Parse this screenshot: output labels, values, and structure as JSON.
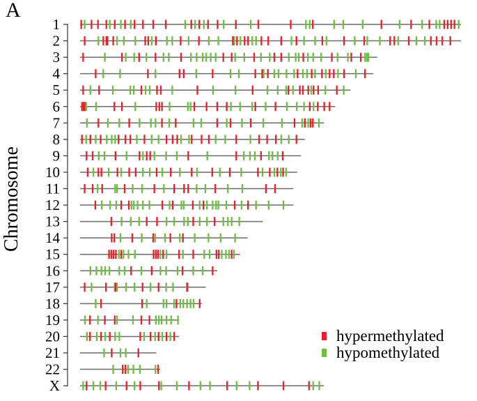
{
  "panel_label": "A",
  "chart_data": {
    "type": "chromosome-ideogram",
    "ylabel": "Chromosome",
    "legend_placement": "bottom-right",
    "legend": [
      {
        "name": "hypermethylated",
        "color": "#e8202a"
      },
      {
        "name": "hypomethylated",
        "color": "#6cbf3f"
      }
    ],
    "chromosomes": [
      {
        "name": "1",
        "length": 1.0,
        "hyper": [
          0.003,
          0.03,
          0.047,
          0.069,
          0.091,
          0.118,
          0.143,
          0.165,
          0.192,
          0.225,
          0.292,
          0.313,
          0.336,
          0.361,
          0.409,
          0.468,
          0.553,
          0.611,
          0.791,
          0.869,
          0.917,
          0.956,
          0.965,
          0.974,
          0.983
        ],
        "hypo": [
          0.012,
          0.078,
          0.107,
          0.133,
          0.276,
          0.302,
          0.325,
          0.377,
          0.448,
          0.593,
          0.603,
          0.667,
          0.691,
          0.742,
          0.839,
          0.898,
          0.935,
          0.944,
          0.994
        ]
      },
      {
        "name": "2",
        "length": 1.0,
        "hyper": [
          0.012,
          0.061,
          0.069,
          0.072,
          0.087,
          0.171,
          0.179,
          0.199,
          0.264,
          0.312,
          0.401,
          0.412,
          0.432,
          0.441,
          0.476,
          0.494,
          0.528,
          0.568,
          0.636,
          0.693,
          0.746,
          0.814,
          0.825,
          0.863,
          0.921,
          0.936,
          0.951,
          0.972
        ],
        "hypo": [
          0.048,
          0.097,
          0.115,
          0.145,
          0.188,
          0.228,
          0.242,
          0.285,
          0.338,
          0.363,
          0.405,
          0.421,
          0.452,
          0.462,
          0.555,
          0.588,
          0.617,
          0.647,
          0.721,
          0.754,
          0.787,
          0.835,
          0.883,
          0.905
        ]
      },
      {
        "name": "3",
        "length": 0.78,
        "hyper": [
          0.008,
          0.11,
          0.155,
          0.198,
          0.265,
          0.376,
          0.398,
          0.457,
          0.51,
          0.528,
          0.586,
          0.661,
          0.712,
          0.737
        ],
        "hypo": [
          0.065,
          0.12,
          0.142,
          0.174,
          0.219,
          0.233,
          0.291,
          0.306,
          0.322,
          0.331,
          0.343,
          0.356,
          0.407,
          0.431,
          0.475,
          0.498,
          0.548,
          0.566,
          0.574,
          0.598,
          0.612,
          0.633,
          0.676,
          0.703,
          0.748,
          0.753,
          0.757
        ]
      },
      {
        "name": "4",
        "length": 0.77,
        "hyper": [
          0.041,
          0.178,
          0.261,
          0.272,
          0.348,
          0.46,
          0.478,
          0.493,
          0.571,
          0.608,
          0.635,
          0.655,
          0.666,
          0.693,
          0.748
        ],
        "hypo": [
          0.061,
          0.105,
          0.198,
          0.305,
          0.395,
          0.417,
          0.482,
          0.51,
          0.521,
          0.542,
          0.562,
          0.585,
          0.596,
          0.617,
          0.645,
          0.677,
          0.724
        ]
      },
      {
        "name": "5",
        "length": 0.71,
        "hyper": [
          0.008,
          0.05,
          0.161,
          0.202,
          0.212,
          0.308,
          0.453,
          0.547,
          0.577,
          0.585,
          0.599,
          0.613,
          0.625,
          0.674
        ],
        "hypo": [
          0.027,
          0.086,
          0.132,
          0.141,
          0.172,
          0.183,
          0.242,
          0.308,
          0.349,
          0.408,
          0.492,
          0.519,
          0.541,
          0.559,
          0.607,
          0.644,
          0.692
        ]
      },
      {
        "name": "6",
        "length": 0.67,
        "hyper": [
          0.005,
          0.009,
          0.012,
          0.09,
          0.11,
          0.2,
          0.208,
          0.215,
          0.3,
          0.332,
          0.36,
          0.385,
          0.46,
          0.513,
          0.603,
          0.624,
          0.641,
          0.655
        ],
        "hypo": [
          0.016,
          0.042,
          0.145,
          0.235,
          0.283,
          0.29,
          0.396,
          0.42,
          0.452,
          0.487,
          0.543,
          0.569,
          0.588,
          0.613
        ]
      },
      {
        "name": "7",
        "length": 0.64,
        "hyper": [
          0.048,
          0.129,
          0.215,
          0.251,
          0.36,
          0.395,
          0.448,
          0.563,
          0.59,
          0.605,
          0.611
        ],
        "hypo": [
          0.018,
          0.073,
          0.103,
          0.156,
          0.186,
          0.198,
          0.234,
          0.298,
          0.318,
          0.385,
          0.425,
          0.481,
          0.53,
          0.583,
          0.599,
          0.627
        ]
      },
      {
        "name": "8",
        "length": 0.59,
        "hyper": [
          0.005,
          0.027,
          0.054,
          0.101,
          0.119,
          0.132,
          0.169,
          0.227,
          0.243,
          0.255,
          0.293,
          0.319,
          0.338,
          0.41,
          0.47,
          0.491,
          0.514,
          0.568
        ],
        "hypo": [
          0.016,
          0.041,
          0.07,
          0.083,
          0.092,
          0.149,
          0.188,
          0.206,
          0.265,
          0.286,
          0.356,
          0.381,
          0.447,
          0.528,
          0.548
        ]
      },
      {
        "name": "9",
        "length": 0.58,
        "hyper": [
          0.017,
          0.033,
          0.093,
          0.156,
          0.175,
          0.184,
          0.284,
          0.41,
          0.475,
          0.532
        ],
        "hypo": [
          0.049,
          0.064,
          0.122,
          0.165,
          0.195,
          0.226,
          0.254,
          0.334,
          0.43,
          0.446,
          0.459,
          0.496,
          0.505,
          0.519
        ]
      },
      {
        "name": "10",
        "length": 0.57,
        "hyper": [
          0.02,
          0.048,
          0.056,
          0.098,
          0.129,
          0.146,
          0.201,
          0.238,
          0.293,
          0.347,
          0.393,
          0.467,
          0.498,
          0.518,
          0.533
        ],
        "hypo": [
          0.035,
          0.075,
          0.108,
          0.165,
          0.183,
          0.216,
          0.262,
          0.307,
          0.367,
          0.423,
          0.479,
          0.51,
          0.527,
          0.541
        ]
      },
      {
        "name": "11",
        "length": 0.56,
        "hyper": [
          0.012,
          0.033,
          0.058,
          0.117,
          0.195,
          0.247,
          0.273,
          0.284,
          0.355,
          0.488,
          0.512
        ],
        "hypo": [
          0.046,
          0.092,
          0.097,
          0.138,
          0.163,
          0.22,
          0.306,
          0.329,
          0.388,
          0.426
        ]
      },
      {
        "name": "12",
        "length": 0.56,
        "hyper": [
          0.04,
          0.108,
          0.128,
          0.216,
          0.243,
          0.296,
          0.324,
          0.406,
          0.441
        ],
        "hypo": [
          0.057,
          0.079,
          0.095,
          0.135,
          0.141,
          0.151,
          0.165,
          0.182,
          0.235,
          0.266,
          0.272,
          0.314,
          0.333,
          0.348,
          0.357,
          0.363,
          0.384,
          0.424,
          0.462,
          0.495,
          0.534
        ]
      },
      {
        "name": "13",
        "length": 0.48,
        "hyper": [
          0.082,
          0.175,
          0.202,
          0.297,
          0.353
        ],
        "hypo": [
          0.109,
          0.133,
          0.155,
          0.227,
          0.247,
          0.273,
          0.283,
          0.314,
          0.333,
          0.376,
          0.388,
          0.398,
          0.418
        ]
      },
      {
        "name": "14",
        "length": 0.44,
        "hyper": [
          0.083,
          0.09,
          0.137,
          0.192,
          0.237,
          0.27
        ],
        "hypo": [
          0.106,
          0.162,
          0.197,
          0.223,
          0.262,
          0.301,
          0.337,
          0.369,
          0.407
        ]
      },
      {
        "name": "15",
        "length": 0.42,
        "hyper": [
          0.076,
          0.082,
          0.088,
          0.094,
          0.108,
          0.193,
          0.199,
          0.205,
          0.218,
          0.26,
          0.297,
          0.358,
          0.364,
          0.398
        ],
        "hypo": [
          0.102,
          0.114,
          0.127,
          0.144,
          0.211,
          0.227,
          0.27,
          0.326,
          0.34,
          0.372,
          0.383,
          0.391,
          0.404
        ]
      },
      {
        "name": "16",
        "length": 0.36,
        "hyper": [
          0.134,
          0.188,
          0.269,
          0.348
        ],
        "hypo": [
          0.027,
          0.043,
          0.056,
          0.066,
          0.077,
          0.103,
          0.117,
          0.161,
          0.211,
          0.226,
          0.256,
          0.297,
          0.322
        ]
      },
      {
        "name": "17",
        "length": 0.33,
        "hyper": [
          0.012,
          0.068,
          0.093,
          0.164,
          0.206,
          0.282
        ],
        "hypo": [
          0.03,
          0.091,
          0.097,
          0.121,
          0.143,
          0.185,
          0.226,
          0.244,
          0.28
        ]
      },
      {
        "name": "18",
        "length": 0.32,
        "hyper": [
          0.055,
          0.163,
          0.253,
          0.314
        ],
        "hypo": [
          0.041,
          0.175,
          0.219,
          0.227,
          0.247,
          0.263,
          0.271,
          0.281,
          0.29,
          0.298
        ]
      },
      {
        "name": "19",
        "length": 0.26,
        "hyper": [
          0.026,
          0.065,
          0.091,
          0.161,
          0.182
        ],
        "hypo": [
          0.013,
          0.047,
          0.097,
          0.139,
          0.199,
          0.207,
          0.214,
          0.227,
          0.239,
          0.257
        ]
      },
      {
        "name": "20",
        "length": 0.26,
        "hyper": [
          0.026,
          0.055,
          0.078,
          0.158,
          0.185,
          0.206,
          0.227,
          0.247
        ],
        "hypo": [
          0.018,
          0.044,
          0.066,
          0.092,
          0.103,
          0.168,
          0.197,
          0.216,
          0.237
        ]
      },
      {
        "name": "21",
        "length": 0.2,
        "hyper": [
          0.083,
          0.153
        ],
        "hypo": [
          0.063,
          0.106,
          0.12
        ]
      },
      {
        "name": "22",
        "length": 0.21,
        "hyper": [
          0.112,
          0.119,
          0.205
        ],
        "hypo": [
          0.087,
          0.126,
          0.14,
          0.157,
          0.198
        ]
      },
      {
        "name": "X",
        "length": 0.64,
        "hyper": [
          0.017,
          0.067,
          0.122,
          0.158,
          0.207,
          0.286,
          0.386,
          0.467,
          0.534,
          0.601
        ],
        "hypo": [
          0.008,
          0.035,
          0.053,
          0.095,
          0.143,
          0.213,
          0.254,
          0.316,
          0.341,
          0.411,
          0.445,
          0.612,
          0.628
        ]
      }
    ]
  }
}
